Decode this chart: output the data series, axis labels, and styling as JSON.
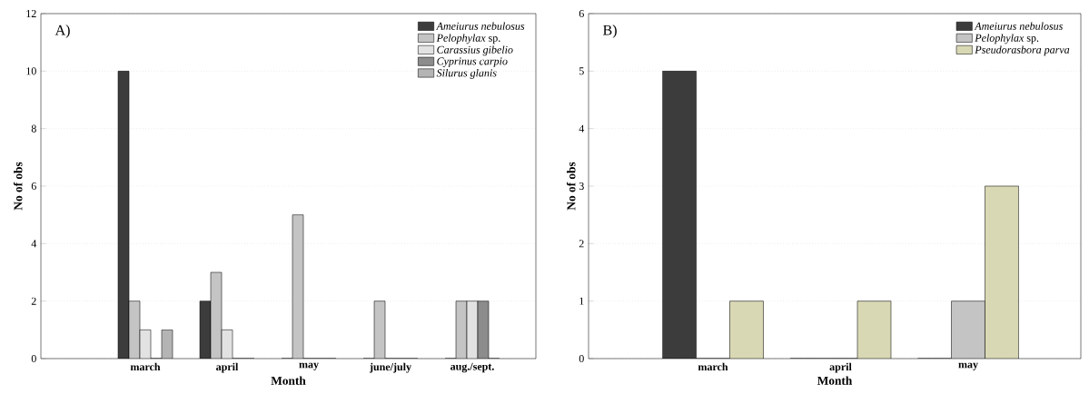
{
  "chart_data": [
    {
      "type": "bar",
      "annotations": [
        "A)"
      ],
      "xlabel": "Month",
      "ylabel": "No of obs",
      "categories": [
        "march",
        "april",
        "may",
        "june/july",
        "aug./sept."
      ],
      "series": [
        {
          "name": "*Ameiurus nebulosus*",
          "color": "#3c3c3c",
          "values": [
            10,
            2,
            0,
            0,
            0
          ]
        },
        {
          "name": "*Pelophylax* sp.",
          "color": "#c4c4c4",
          "values": [
            2,
            3,
            5,
            2,
            2
          ]
        },
        {
          "name": "*Carassius gibelio*",
          "color": "#e2e2e2",
          "values": [
            1,
            1,
            0,
            0,
            2
          ]
        },
        {
          "name": "*Cyprinus carpio*",
          "color": "#8c8c8c",
          "values": [
            0,
            0,
            0,
            0,
            2
          ]
        },
        {
          "name": "*Silurus glanis*",
          "color": "#b4b4b4",
          "values": [
            1,
            0,
            0,
            0,
            0
          ]
        }
      ],
      "ylim": [
        0,
        12
      ],
      "yticks": [
        0,
        2,
        4,
        6,
        8,
        10,
        12
      ],
      "grid": "y",
      "legend": "top right"
    },
    {
      "type": "bar",
      "annotations": [
        "B)"
      ],
      "xlabel": "Month",
      "ylabel": "No of obs",
      "categories": [
        "march",
        "april",
        "may"
      ],
      "series": [
        {
          "name": "*Ameiurus nebulosus*",
          "color": "#3c3c3c",
          "values": [
            5,
            0,
            0
          ]
        },
        {
          "name": "*Pelophylax* sp.",
          "color": "#c4c4c4",
          "values": [
            0,
            0,
            1
          ]
        },
        {
          "name": "*Pseudorasbora parva*",
          "color": "#d8d8b4",
          "values": [
            1,
            1,
            3
          ]
        }
      ],
      "ylim": [
        0,
        6
      ],
      "yticks": [
        0,
        1,
        2,
        3,
        4,
        5,
        6
      ],
      "grid": "y",
      "legend": "top right"
    }
  ]
}
